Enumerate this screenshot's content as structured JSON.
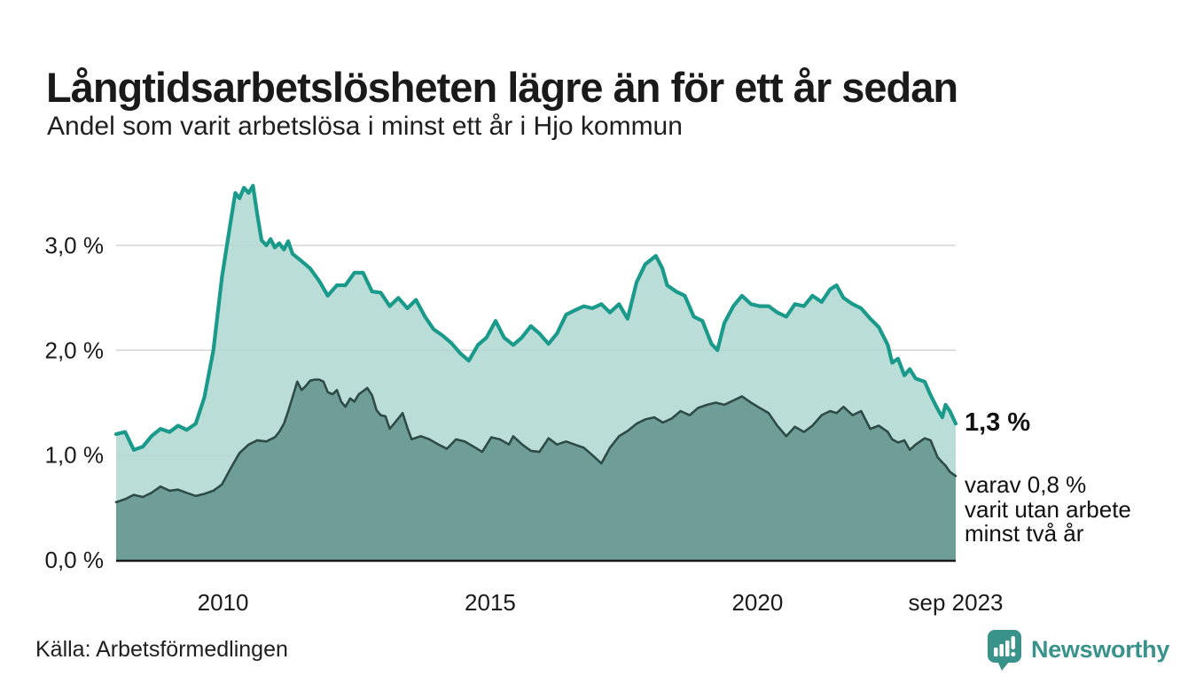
{
  "header": {
    "title": "Långtidsarbetslösheten lägre än för ett år sedan",
    "subtitle": "Andel som varit arbetslösa i minst ett år i Hjo kommun"
  },
  "annotation": {
    "value": "1,3 %",
    "lines": [
      "varav 0,8 %",
      "varit utan arbete",
      "minst två år"
    ]
  },
  "footer": {
    "source": "Källa: Arbetsförmedlingen",
    "logo_text": "Newsworthy"
  },
  "colors": {
    "accent_teal": "#1a9a8b",
    "light_fill": "#b2d8d2",
    "dark_line": "#2e4b46",
    "dark_fill": "#6f9e99",
    "gridline": "#d6d6d6",
    "axis": "#1a1a1a",
    "logo_teal": "#3a938b",
    "text": "#1a1a1a"
  },
  "chart_data": {
    "type": "area",
    "title": "Långtidsarbetslösheten lägre än för ett år sedan",
    "subtitle": "Andel som varit arbetslösa i minst ett år i Hjo kommun",
    "unit": "%",
    "x_domain": [
      2008.0,
      2023.71
    ],
    "y_domain": [
      0,
      3.7
    ],
    "grid": true,
    "y_ticks": [
      {
        "label": "3,0 %",
        "value": 3
      },
      {
        "label": "2,0 %",
        "value": 2
      },
      {
        "label": "1,0 %",
        "value": 1
      },
      {
        "label": "0,0 %",
        "value": 0
      }
    ],
    "x_ticks": [
      {
        "label": "2010",
        "value": 2010
      },
      {
        "label": "2015",
        "value": 2015
      },
      {
        "label": "2020",
        "value": 2020
      },
      {
        "label": "sep 2023",
        "value": 2023.71
      }
    ],
    "series": [
      {
        "name": "Arbetslösa minst ett år",
        "end_value_label": "1,3 %",
        "line_color": "#1a9a8b",
        "fill_color": "#b2d8d2",
        "points": [
          [
            2008.0,
            1.2
          ],
          [
            2008.17,
            1.22
          ],
          [
            2008.33,
            1.05
          ],
          [
            2008.5,
            1.08
          ],
          [
            2008.66,
            1.18
          ],
          [
            2008.83,
            1.25
          ],
          [
            2009.0,
            1.22
          ],
          [
            2009.16,
            1.28
          ],
          [
            2009.32,
            1.24
          ],
          [
            2009.49,
            1.3
          ],
          [
            2009.65,
            1.55
          ],
          [
            2009.82,
            2.0
          ],
          [
            2009.98,
            2.7
          ],
          [
            2010.15,
            3.25
          ],
          [
            2010.23,
            3.5
          ],
          [
            2010.31,
            3.45
          ],
          [
            2010.39,
            3.55
          ],
          [
            2010.48,
            3.5
          ],
          [
            2010.56,
            3.57
          ],
          [
            2010.64,
            3.3
          ],
          [
            2010.72,
            3.05
          ],
          [
            2010.81,
            3.0
          ],
          [
            2010.89,
            3.06
          ],
          [
            2010.97,
            2.98
          ],
          [
            2011.05,
            3.02
          ],
          [
            2011.14,
            2.96
          ],
          [
            2011.22,
            3.04
          ],
          [
            2011.3,
            2.92
          ],
          [
            2011.47,
            2.85
          ],
          [
            2011.63,
            2.78
          ],
          [
            2011.8,
            2.66
          ],
          [
            2011.96,
            2.52
          ],
          [
            2012.13,
            2.62
          ],
          [
            2012.29,
            2.62
          ],
          [
            2012.46,
            2.74
          ],
          [
            2012.62,
            2.74
          ],
          [
            2012.79,
            2.56
          ],
          [
            2012.95,
            2.55
          ],
          [
            2013.12,
            2.42
          ],
          [
            2013.28,
            2.5
          ],
          [
            2013.45,
            2.4
          ],
          [
            2013.61,
            2.48
          ],
          [
            2013.78,
            2.32
          ],
          [
            2013.94,
            2.2
          ],
          [
            2014.11,
            2.14
          ],
          [
            2014.27,
            2.07
          ],
          [
            2014.44,
            1.97
          ],
          [
            2014.6,
            1.9
          ],
          [
            2014.77,
            2.05
          ],
          [
            2014.93,
            2.12
          ],
          [
            2015.1,
            2.28
          ],
          [
            2015.26,
            2.12
          ],
          [
            2015.43,
            2.05
          ],
          [
            2015.59,
            2.12
          ],
          [
            2015.76,
            2.23
          ],
          [
            2015.92,
            2.16
          ],
          [
            2016.09,
            2.06
          ],
          [
            2016.25,
            2.16
          ],
          [
            2016.42,
            2.34
          ],
          [
            2016.58,
            2.38
          ],
          [
            2016.75,
            2.42
          ],
          [
            2016.91,
            2.4
          ],
          [
            2017.08,
            2.44
          ],
          [
            2017.24,
            2.36
          ],
          [
            2017.41,
            2.44
          ],
          [
            2017.57,
            2.3
          ],
          [
            2017.74,
            2.65
          ],
          [
            2017.9,
            2.82
          ],
          [
            2018.1,
            2.9
          ],
          [
            2018.22,
            2.78
          ],
          [
            2018.31,
            2.62
          ],
          [
            2018.48,
            2.56
          ],
          [
            2018.64,
            2.52
          ],
          [
            2018.81,
            2.32
          ],
          [
            2018.97,
            2.28
          ],
          [
            2019.14,
            2.06
          ],
          [
            2019.25,
            2.0
          ],
          [
            2019.38,
            2.26
          ],
          [
            2019.55,
            2.42
          ],
          [
            2019.71,
            2.52
          ],
          [
            2019.88,
            2.44
          ],
          [
            2020.04,
            2.42
          ],
          [
            2020.21,
            2.42
          ],
          [
            2020.37,
            2.36
          ],
          [
            2020.54,
            2.32
          ],
          [
            2020.7,
            2.44
          ],
          [
            2020.87,
            2.42
          ],
          [
            2021.03,
            2.52
          ],
          [
            2021.2,
            2.46
          ],
          [
            2021.36,
            2.58
          ],
          [
            2021.48,
            2.62
          ],
          [
            2021.61,
            2.5
          ],
          [
            2021.78,
            2.44
          ],
          [
            2021.94,
            2.4
          ],
          [
            2022.11,
            2.3
          ],
          [
            2022.27,
            2.22
          ],
          [
            2022.44,
            2.05
          ],
          [
            2022.52,
            1.88
          ],
          [
            2022.63,
            1.92
          ],
          [
            2022.75,
            1.76
          ],
          [
            2022.85,
            1.82
          ],
          [
            2022.96,
            1.73
          ],
          [
            2023.13,
            1.7
          ],
          [
            2023.24,
            1.57
          ],
          [
            2023.37,
            1.44
          ],
          [
            2023.46,
            1.36
          ],
          [
            2023.52,
            1.48
          ],
          [
            2023.6,
            1.42
          ],
          [
            2023.71,
            1.3
          ]
        ]
      },
      {
        "name": "Arbetslösa minst två år",
        "end_value_label": "0,8 %",
        "line_color": "#2e4b46",
        "fill_color": "#6f9e99",
        "points": [
          [
            2008.0,
            0.55
          ],
          [
            2008.17,
            0.58
          ],
          [
            2008.33,
            0.62
          ],
          [
            2008.5,
            0.6
          ],
          [
            2008.66,
            0.64
          ],
          [
            2008.83,
            0.7
          ],
          [
            2009.0,
            0.66
          ],
          [
            2009.16,
            0.67
          ],
          [
            2009.32,
            0.64
          ],
          [
            2009.49,
            0.61
          ],
          [
            2009.65,
            0.63
          ],
          [
            2009.82,
            0.66
          ],
          [
            2009.98,
            0.72
          ],
          [
            2010.15,
            0.88
          ],
          [
            2010.31,
            1.02
          ],
          [
            2010.48,
            1.1
          ],
          [
            2010.64,
            1.14
          ],
          [
            2010.81,
            1.13
          ],
          [
            2010.97,
            1.17
          ],
          [
            2011.05,
            1.22
          ],
          [
            2011.14,
            1.3
          ],
          [
            2011.22,
            1.42
          ],
          [
            2011.3,
            1.55
          ],
          [
            2011.39,
            1.7
          ],
          [
            2011.47,
            1.62
          ],
          [
            2011.55,
            1.66
          ],
          [
            2011.63,
            1.71
          ],
          [
            2011.72,
            1.72
          ],
          [
            2011.8,
            1.72
          ],
          [
            2011.88,
            1.7
          ],
          [
            2011.96,
            1.6
          ],
          [
            2012.05,
            1.58
          ],
          [
            2012.13,
            1.62
          ],
          [
            2012.21,
            1.51
          ],
          [
            2012.29,
            1.46
          ],
          [
            2012.38,
            1.54
          ],
          [
            2012.46,
            1.51
          ],
          [
            2012.54,
            1.58
          ],
          [
            2012.62,
            1.61
          ],
          [
            2012.7,
            1.64
          ],
          [
            2012.79,
            1.57
          ],
          [
            2012.87,
            1.43
          ],
          [
            2012.95,
            1.38
          ],
          [
            2013.04,
            1.37
          ],
          [
            2013.12,
            1.25
          ],
          [
            2013.2,
            1.3
          ],
          [
            2013.36,
            1.4
          ],
          [
            2013.45,
            1.26
          ],
          [
            2013.53,
            1.15
          ],
          [
            2013.7,
            1.18
          ],
          [
            2013.86,
            1.15
          ],
          [
            2014.03,
            1.1
          ],
          [
            2014.19,
            1.06
          ],
          [
            2014.36,
            1.15
          ],
          [
            2014.52,
            1.13
          ],
          [
            2014.69,
            1.08
          ],
          [
            2014.85,
            1.03
          ],
          [
            2015.02,
            1.17
          ],
          [
            2015.18,
            1.15
          ],
          [
            2015.35,
            1.1
          ],
          [
            2015.43,
            1.18
          ],
          [
            2015.6,
            1.1
          ],
          [
            2015.76,
            1.04
          ],
          [
            2015.92,
            1.03
          ],
          [
            2016.09,
            1.16
          ],
          [
            2016.25,
            1.1
          ],
          [
            2016.42,
            1.13
          ],
          [
            2016.58,
            1.1
          ],
          [
            2016.75,
            1.07
          ],
          [
            2016.91,
            1.0
          ],
          [
            2017.08,
            0.92
          ],
          [
            2017.24,
            1.07
          ],
          [
            2017.41,
            1.18
          ],
          [
            2017.57,
            1.23
          ],
          [
            2017.74,
            1.3
          ],
          [
            2017.9,
            1.34
          ],
          [
            2018.07,
            1.36
          ],
          [
            2018.23,
            1.31
          ],
          [
            2018.4,
            1.35
          ],
          [
            2018.56,
            1.42
          ],
          [
            2018.73,
            1.38
          ],
          [
            2018.89,
            1.45
          ],
          [
            2019.06,
            1.48
          ],
          [
            2019.22,
            1.5
          ],
          [
            2019.38,
            1.48
          ],
          [
            2019.55,
            1.52
          ],
          [
            2019.71,
            1.56
          ],
          [
            2019.88,
            1.5
          ],
          [
            2020.04,
            1.45
          ],
          [
            2020.21,
            1.4
          ],
          [
            2020.37,
            1.28
          ],
          [
            2020.54,
            1.18
          ],
          [
            2020.7,
            1.27
          ],
          [
            2020.87,
            1.22
          ],
          [
            2021.03,
            1.28
          ],
          [
            2021.2,
            1.38
          ],
          [
            2021.36,
            1.42
          ],
          [
            2021.48,
            1.4
          ],
          [
            2021.61,
            1.46
          ],
          [
            2021.78,
            1.38
          ],
          [
            2021.94,
            1.42
          ],
          [
            2022.11,
            1.25
          ],
          [
            2022.27,
            1.28
          ],
          [
            2022.44,
            1.22
          ],
          [
            2022.52,
            1.15
          ],
          [
            2022.63,
            1.12
          ],
          [
            2022.75,
            1.14
          ],
          [
            2022.85,
            1.05
          ],
          [
            2022.96,
            1.1
          ],
          [
            2023.13,
            1.16
          ],
          [
            2023.24,
            1.14
          ],
          [
            2023.37,
            0.98
          ],
          [
            2023.46,
            0.93
          ],
          [
            2023.52,
            0.9
          ],
          [
            2023.6,
            0.84
          ],
          [
            2023.71,
            0.8
          ]
        ]
      }
    ]
  }
}
